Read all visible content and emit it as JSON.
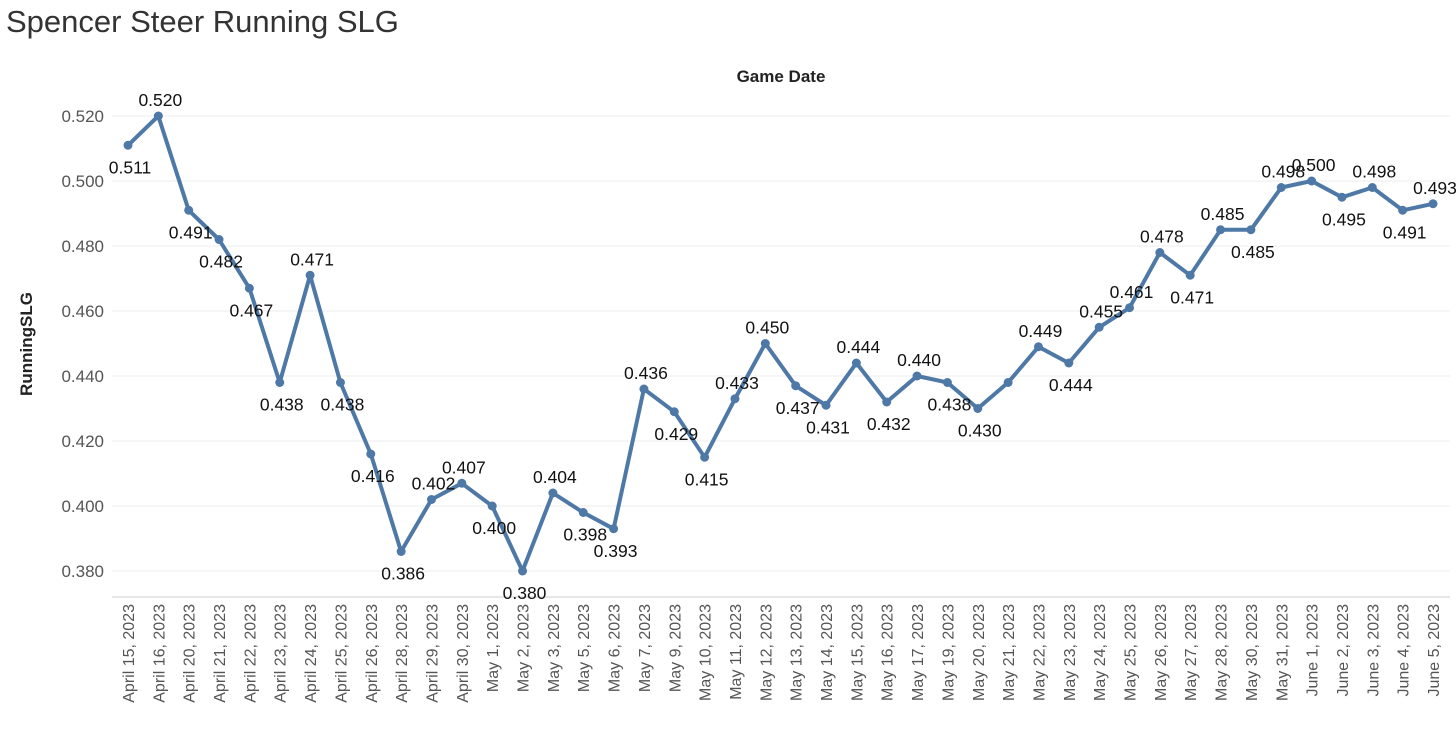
{
  "title": "Spencer Steer Running SLG",
  "chart_data": {
    "type": "line",
    "title": "Spencer Steer Running SLG",
    "xlabel": "Game Date",
    "ylabel": "RunningSLG",
    "ylim": [
      0.375,
      0.525
    ],
    "yticks": [
      "0.380",
      "0.400",
      "0.420",
      "0.440",
      "0.460",
      "0.480",
      "0.500",
      "0.520"
    ],
    "grid": true,
    "line_color": "#4e79a7",
    "categories": [
      "April 15, 2023",
      "April 16, 2023",
      "April 20, 2023",
      "April 21, 2023",
      "April 22, 2023",
      "April 23, 2023",
      "April 24, 2023",
      "April 25, 2023",
      "April 26, 2023",
      "April 28, 2023",
      "April 29, 2023",
      "April 30, 2023",
      "May 1, 2023",
      "May 2, 2023",
      "May 3, 2023",
      "May 5, 2023",
      "May 6, 2023",
      "May 7, 2023",
      "May 9, 2023",
      "May 10, 2023",
      "May 11, 2023",
      "May 12, 2023",
      "May 13, 2023",
      "May 14, 2023",
      "May 15, 2023",
      "May 16, 2023",
      "May 17, 2023",
      "May 19, 2023",
      "May 20, 2023",
      "May 21, 2023",
      "May 22, 2023",
      "May 23, 2023",
      "May 24, 2023",
      "May 25, 2023",
      "May 26, 2023",
      "May 27, 2023",
      "May 28, 2023",
      "May 30, 2023",
      "May 31, 2023",
      "June 1, 2023",
      "June 2, 2023",
      "June 3, 2023",
      "June 4, 2023",
      "June 5, 2023"
    ],
    "values": [
      0.511,
      0.52,
      0.491,
      0.482,
      0.467,
      0.438,
      0.471,
      0.438,
      0.416,
      0.386,
      0.402,
      0.407,
      0.4,
      0.38,
      0.404,
      0.398,
      0.393,
      0.436,
      0.429,
      0.415,
      0.433,
      0.45,
      0.437,
      0.431,
      0.444,
      0.432,
      0.44,
      0.438,
      0.43,
      0.438,
      0.449,
      0.444,
      0.455,
      0.461,
      0.478,
      0.471,
      0.485,
      0.485,
      0.498,
      0.5,
      0.495,
      0.498,
      0.491,
      0.493
    ],
    "data_labels": [
      "0.511",
      "0.520",
      "0.491",
      "0.482",
      "0.467",
      "0.438",
      "0.471",
      "0.438",
      "0.416",
      "0.386",
      "0.402",
      "0.407",
      "0.400",
      "0.380",
      "0.404",
      "0.398",
      "0.393",
      "0.436",
      "0.429",
      "0.415",
      "0.433",
      "0.450",
      "0.437",
      "0.431",
      "0.444",
      "0.432",
      "0.440",
      "0.438",
      "0.430",
      "",
      "0.449",
      "0.444",
      "0.455",
      "0.461",
      "0.478",
      "0.471",
      "0.485",
      "0.485",
      "0.498",
      "0.500",
      "0.495",
      "0.498",
      "0.491",
      "0.493"
    ]
  }
}
